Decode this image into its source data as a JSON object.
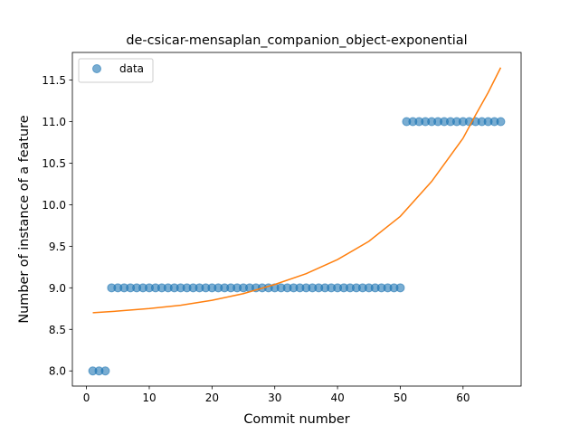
{
  "chart_data": {
    "type": "scatter",
    "title": "de-csicar-mensaplan_companion_object-exponential",
    "xlabel": "Commit number",
    "ylabel": "Number of instance of a feature",
    "xlim": [
      -2.25,
      69.25
    ],
    "ylim": [
      7.8175,
      11.8325
    ],
    "xticks": [
      0,
      10,
      20,
      30,
      40,
      50,
      60
    ],
    "yticks": [
      8.0,
      8.5,
      9.0,
      9.5,
      10.0,
      10.5,
      11.0,
      11.5
    ],
    "ytick_labels": [
      "8.0",
      "8.5",
      "9.0",
      "9.5",
      "10.0",
      "10.5",
      "11.0",
      "11.5"
    ],
    "grid": false,
    "legend": {
      "position": "top-left",
      "entries": [
        "data"
      ]
    },
    "series": [
      {
        "name": "data",
        "kind": "scatter",
        "color": "#1f77b4",
        "x": [
          1,
          2,
          3,
          4,
          5,
          6,
          7,
          8,
          9,
          10,
          11,
          12,
          13,
          14,
          15,
          16,
          17,
          18,
          19,
          20,
          21,
          22,
          23,
          24,
          25,
          26,
          27,
          28,
          29,
          30,
          31,
          32,
          33,
          34,
          35,
          36,
          37,
          38,
          39,
          40,
          41,
          42,
          43,
          44,
          45,
          46,
          47,
          48,
          49,
          50,
          51,
          52,
          53,
          54,
          55,
          56,
          57,
          58,
          59,
          60,
          61,
          62,
          63,
          64,
          65,
          66
        ],
        "y": [
          8,
          8,
          8,
          9,
          9,
          9,
          9,
          9,
          9,
          9,
          9,
          9,
          9,
          9,
          9,
          9,
          9,
          9,
          9,
          9,
          9,
          9,
          9,
          9,
          9,
          9,
          9,
          9,
          9,
          9,
          9,
          9,
          9,
          9,
          9,
          9,
          9,
          9,
          9,
          9,
          9,
          9,
          9,
          9,
          9,
          9,
          9,
          9,
          9,
          9,
          11,
          11,
          11,
          11,
          11,
          11,
          11,
          11,
          11,
          11,
          11,
          11,
          11,
          11,
          11,
          11
        ]
      },
      {
        "kind": "line",
        "color": "#ff7f0e",
        "x": [
          1,
          5,
          10,
          15,
          20,
          25,
          30,
          35,
          40,
          45,
          50,
          55,
          60,
          62,
          64,
          66
        ],
        "y": [
          8.7,
          8.72,
          8.75,
          8.79,
          8.85,
          8.93,
          9.04,
          9.17,
          9.34,
          9.56,
          9.86,
          10.28,
          10.8,
          11.08,
          11.35,
          11.65
        ]
      }
    ]
  }
}
